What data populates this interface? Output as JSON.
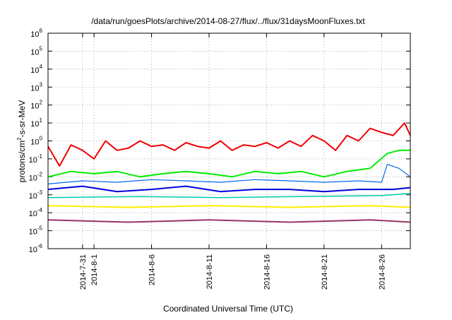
{
  "chart_data": {
    "type": "line",
    "title": "/data/run/goesPlots/archive/2014-08-27/flux/../flux/31daysMoonFluxes.txt",
    "xlabel": "Coordinated Universal Time (UTC)",
    "ylabel_parts": [
      "protons/cm",
      "2",
      "-s-sr-MeV"
    ],
    "yscale": "log",
    "ylim": [
      1e-06,
      1000000.0
    ],
    "xlim": [
      "2014-07-28T00:00",
      "2014-08-28T12:00"
    ],
    "grid": true,
    "y_ticks": [
      {
        "value": 1e-06,
        "base": "10",
        "exp": "-6"
      },
      {
        "value": 1e-05,
        "base": "10",
        "exp": "-5"
      },
      {
        "value": 0.0001,
        "base": "10",
        "exp": "-4"
      },
      {
        "value": 0.001,
        "base": "10",
        "exp": "-3"
      },
      {
        "value": 0.01,
        "base": "10",
        "exp": "-2"
      },
      {
        "value": 0.1,
        "base": "10",
        "exp": "-1"
      },
      {
        "value": 1,
        "base": "10",
        "exp": "0"
      },
      {
        "value": 10,
        "base": "10",
        "exp": "1"
      },
      {
        "value": 100,
        "base": "10",
        "exp": "2"
      },
      {
        "value": 1000,
        "base": "10",
        "exp": "3"
      },
      {
        "value": 10000,
        "base": "10",
        "exp": "4"
      },
      {
        "value": 100000,
        "base": "10",
        "exp": "5"
      },
      {
        "value": 1000000,
        "base": "10",
        "exp": "6"
      }
    ],
    "x_ticks": [
      "2014-7-31",
      "2014-8-1",
      "2014-8-6",
      "2014-8-11",
      "2014-8-16",
      "2014-8-21",
      "2014-8-26"
    ],
    "series": [
      {
        "color": "#ee0000",
        "stroke_width": 2,
        "x": [
          "2014-07-28T00:00",
          "2014-07-29T00:00",
          "2014-07-30T00:00",
          "2014-07-31T00:00",
          "2014-08-01T00:00",
          "2014-08-02T00:00",
          "2014-08-03T00:00",
          "2014-08-04T00:00",
          "2014-08-05T00:00",
          "2014-08-06T00:00",
          "2014-08-07T00:00",
          "2014-08-08T00:00",
          "2014-08-09T00:00",
          "2014-08-10T00:00",
          "2014-08-11T00:00",
          "2014-08-12T00:00",
          "2014-08-13T00:00",
          "2014-08-14T00:00",
          "2014-08-15T00:00",
          "2014-08-16T00:00",
          "2014-08-17T00:00",
          "2014-08-18T00:00",
          "2014-08-19T00:00",
          "2014-08-20T00:00",
          "2014-08-21T00:00",
          "2014-08-22T00:00",
          "2014-08-23T00:00",
          "2014-08-24T00:00",
          "2014-08-25T00:00",
          "2014-08-26T00:00",
          "2014-08-27T00:00",
          "2014-08-28T00:00",
          "2014-08-28T12:00"
        ],
        "y": [
          0.5,
          0.04,
          0.6,
          0.3,
          0.1,
          1.0,
          0.3,
          0.4,
          1.0,
          0.5,
          0.6,
          0.3,
          0.8,
          0.5,
          0.4,
          1.0,
          0.3,
          0.6,
          0.5,
          0.8,
          0.4,
          1.0,
          0.5,
          2.0,
          1.0,
          0.3,
          2.0,
          1.0,
          5.0,
          3.0,
          2.0,
          10.0,
          2.0
        ]
      },
      {
        "color": "#00ee00",
        "stroke_width": 2,
        "x": [
          "2014-07-28T00:00",
          "2014-07-30T00:00",
          "2014-08-01T00:00",
          "2014-08-03T00:00",
          "2014-08-05T00:00",
          "2014-08-07T00:00",
          "2014-08-09T00:00",
          "2014-08-11T00:00",
          "2014-08-13T00:00",
          "2014-08-15T00:00",
          "2014-08-17T00:00",
          "2014-08-19T00:00",
          "2014-08-21T00:00",
          "2014-08-23T00:00",
          "2014-08-25T00:00",
          "2014-08-26T12:00",
          "2014-08-27T12:00",
          "2014-08-28T12:00"
        ],
        "y": [
          0.01,
          0.02,
          0.015,
          0.02,
          0.01,
          0.015,
          0.02,
          0.015,
          0.01,
          0.02,
          0.015,
          0.02,
          0.01,
          0.02,
          0.03,
          0.2,
          0.3,
          0.3
        ]
      },
      {
        "color": "#0066ee",
        "stroke_width": 1.2,
        "x": [
          "2014-07-28T00:00",
          "2014-07-31T00:00",
          "2014-08-03T00:00",
          "2014-08-06T00:00",
          "2014-08-09T00:00",
          "2014-08-12T00:00",
          "2014-08-15T00:00",
          "2014-08-18T00:00",
          "2014-08-21T00:00",
          "2014-08-24T00:00",
          "2014-08-26T00:00",
          "2014-08-26T12:00",
          "2014-08-27T12:00",
          "2014-08-28T12:00"
        ],
        "y": [
          0.004,
          0.006,
          0.005,
          0.007,
          0.006,
          0.005,
          0.007,
          0.006,
          0.005,
          0.006,
          0.005,
          0.05,
          0.03,
          0.01
        ]
      },
      {
        "color": "#0000dd",
        "stroke_width": 2,
        "x": [
          "2014-07-28T00:00",
          "2014-07-31T00:00",
          "2014-08-03T00:00",
          "2014-08-06T00:00",
          "2014-08-09T00:00",
          "2014-08-12T00:00",
          "2014-08-15T00:00",
          "2014-08-18T00:00",
          "2014-08-21T00:00",
          "2014-08-24T00:00",
          "2014-08-27T00:00",
          "2014-08-28T12:00"
        ],
        "y": [
          0.002,
          0.003,
          0.0015,
          0.002,
          0.003,
          0.0015,
          0.002,
          0.002,
          0.0015,
          0.002,
          0.002,
          0.0025
        ]
      },
      {
        "color": "#00ccaa",
        "stroke_width": 1.5,
        "x": [
          "2014-07-28T00:00",
          "2014-08-05T00:00",
          "2014-08-12T00:00",
          "2014-08-19T00:00",
          "2014-08-26T00:00",
          "2014-08-28T12:00"
        ],
        "y": [
          0.0007,
          0.0008,
          0.0007,
          0.0008,
          0.0009,
          0.0012
        ]
      },
      {
        "color": "#ffee00",
        "stroke_width": 2,
        "x": [
          "2014-07-28T00:00",
          "2014-08-04T00:00",
          "2014-08-11T00:00",
          "2014-08-18T00:00",
          "2014-08-25T00:00",
          "2014-08-28T12:00"
        ],
        "y": [
          0.00025,
          0.0002,
          0.00025,
          0.0002,
          0.00025,
          0.0002
        ]
      },
      {
        "color": "#993366",
        "stroke_width": 2,
        "x": [
          "2014-07-28T00:00",
          "2014-08-04T00:00",
          "2014-08-11T00:00",
          "2014-08-18T00:00",
          "2014-08-25T00:00",
          "2014-08-28T12:00"
        ],
        "y": [
          4e-05,
          3e-05,
          4e-05,
          3e-05,
          4e-05,
          3e-05
        ]
      }
    ]
  }
}
